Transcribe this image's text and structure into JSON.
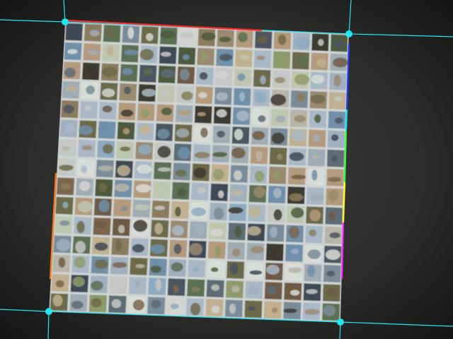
{
  "scene": {
    "description_hidden": false,
    "background_color": "#2a2a29",
    "vignette_color": "#111111",
    "guide_line_color": "#22e6f0",
    "corner_marker_color": "#22e6f0",
    "grid": {
      "rows": 15,
      "cols": 15,
      "subject_colors": [
        "#6f8fa8",
        "#8a7c5c",
        "#a9b8c6",
        "#6c6a4a",
        "#b7b4a8",
        "#4d5a3e",
        "#9fb0bf",
        "#7c6650",
        "#c4c7c3",
        "#5d6c74",
        "#8f9a6a",
        "#b39a7c",
        "#3f4a56",
        "#d2d4d0",
        "#7a8c98",
        "#9a8a70",
        "#5c6f52",
        "#c0b090",
        "#3e3a32",
        "#a0acb4",
        "#6e5a44",
        "#8eaac0",
        "#bfc6b0",
        "#4b5660",
        "#d8dcd6"
      ]
    },
    "edge_colors": {
      "top": "#ff2a2a",
      "right_segments": [
        "#1b3dff",
        "#00e6ff",
        "#2aff2a",
        "#ffff22",
        "#ff22ff"
      ],
      "left": "#ff7a1a"
    }
  }
}
